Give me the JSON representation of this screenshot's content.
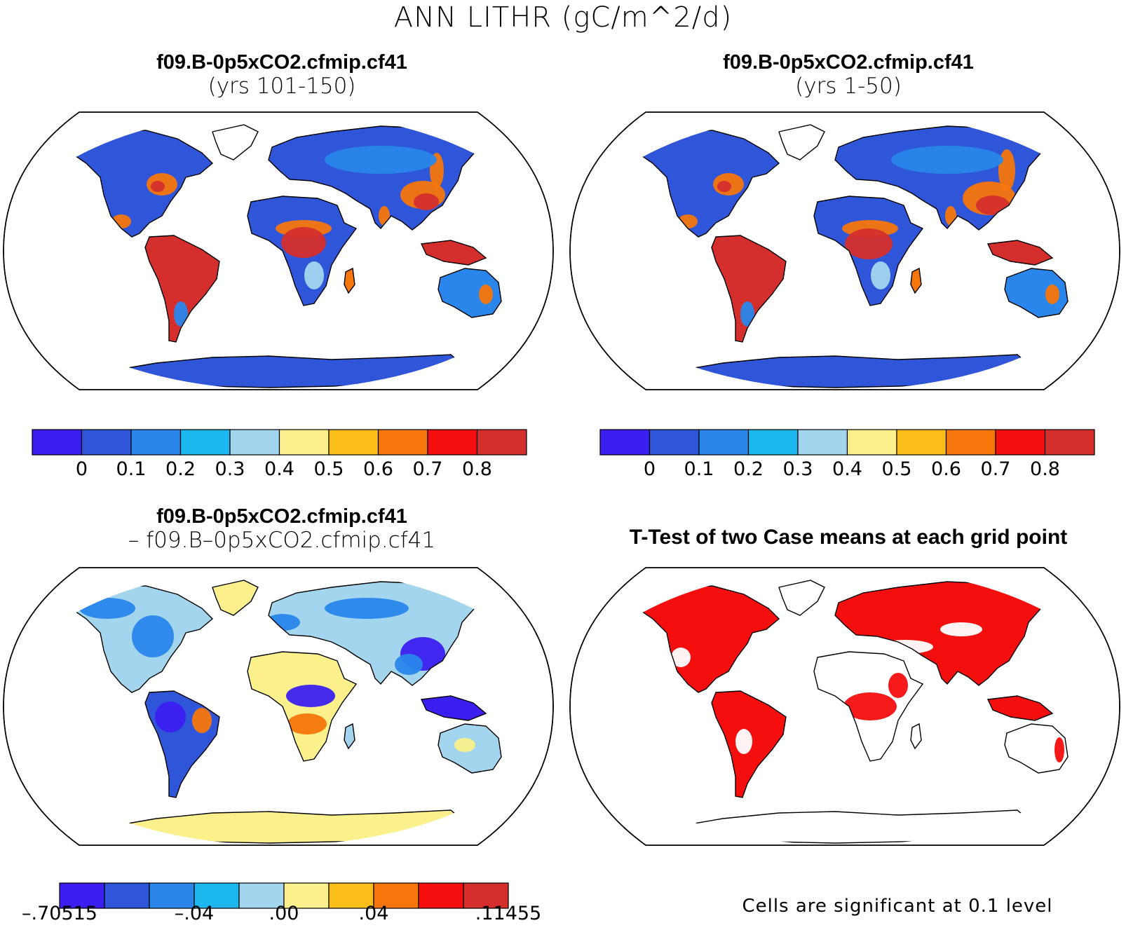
{
  "figure": {
    "title": "ANN LITHR (gC/m^2/d)",
    "footnote": "Cells are significant at 0.1 level"
  },
  "panels": {
    "top_left": {
      "title": "f09.B-0p5xCO2.cfmip.cf41",
      "subtitle": "(yrs 101-150)"
    },
    "top_right": {
      "title": "f09.B-0p5xCO2.cfmip.cf41",
      "subtitle": "(yrs 1-50)"
    },
    "bottom_left": {
      "title": "f09.B-0p5xCO2.cfmip.cf41",
      "subtitle": "– f09.B–0p5xCO2.cfmip.cf41"
    },
    "bottom_right": {
      "title": "T-Test of two Case means at each grid point"
    }
  },
  "colorbars": {
    "absolute": {
      "colors": [
        "#3b1ff0",
        "#2f56d8",
        "#2a86ea",
        "#1cb7ef",
        "#a3d5ef",
        "#fbf08c",
        "#fbbd19",
        "#f6760c",
        "#f50e0e",
        "#d42f2c"
      ],
      "labels": [
        "0",
        "0.1",
        "0.2",
        "0.3",
        "0.4",
        "0.5",
        "0.6",
        "0.7",
        "0.8"
      ]
    },
    "difference": {
      "colors": [
        "#3b1ff0",
        "#2f56d8",
        "#2a86ea",
        "#1cb7ef",
        "#a3d5ef",
        "#fbf08c",
        "#fbbd19",
        "#f6760c",
        "#f50e0e",
        "#d42f2c"
      ],
      "labels": [
        "–.70515",
        "–.04",
        ".00",
        ".04",
        ".11455"
      ]
    }
  },
  "map_colors": {
    "low": "#2f56d8",
    "mid_low": "#2a86ea",
    "pale": "#a3d5ef",
    "yellow": "#fbf08c",
    "orange": "#f6760c",
    "red": "#d42f2c",
    "dark_blue": "#3b1ff0",
    "significant": "#f50e0e"
  }
}
